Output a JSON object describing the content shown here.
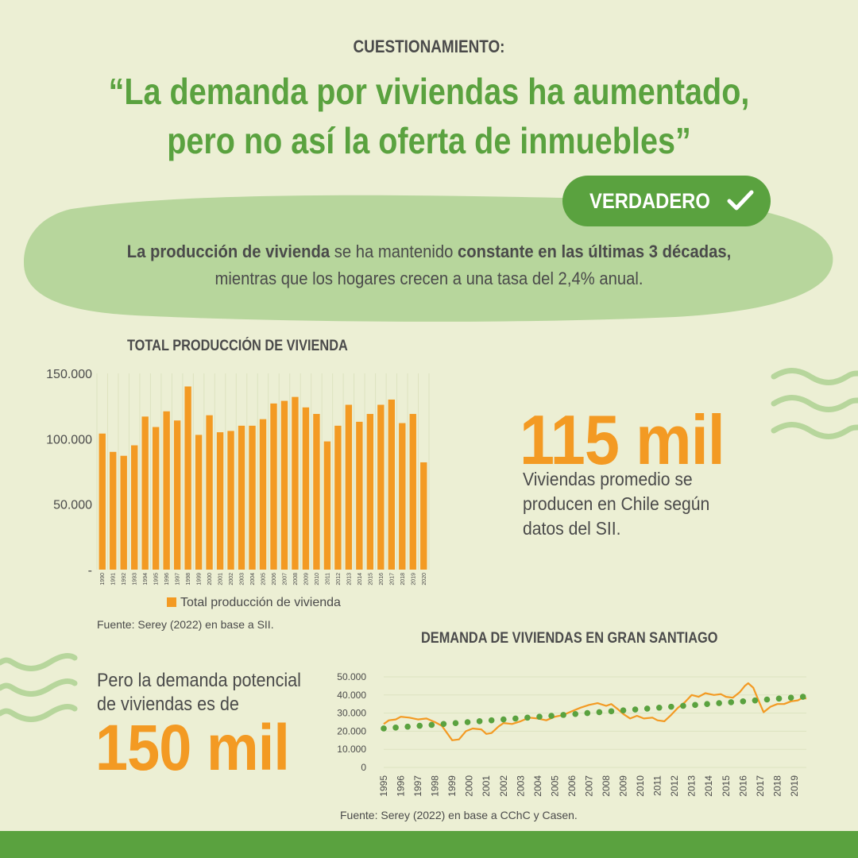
{
  "header": {
    "kicker": "CUESTIONAMIENTO:",
    "headline_line1": "“La demanda por viviendas ha aumentado,",
    "headline_line2": "pero no así la oferta de inmuebles”"
  },
  "verdict": {
    "label": "VERDADERO",
    "icon": "checkmark-icon"
  },
  "summary": {
    "line1_bold_a": "La producción de vivienda",
    "line1_mid": " se ha mantenido ",
    "line1_bold_b": "constante en las últimas 3 décadas,",
    "line2": "mientras que los hogares crecen a una tasa del 2,4% anual."
  },
  "stat_supply": {
    "value": "115 mil",
    "desc_line1": "Viviendas promedio se",
    "desc_line2": "producen en Chile según",
    "desc_line3": "datos del SII."
  },
  "stat_demand": {
    "text_line1": "Pero la demanda potencial",
    "text_line2": "de viviendas es de",
    "value": "150 mil"
  },
  "colors": {
    "green": "#5aa23f",
    "light_green": "#b7d69c",
    "orange": "#f39a23",
    "background": "#ecefd4",
    "text": "#4a4a4a"
  },
  "chart_data": [
    {
      "type": "bar",
      "title": "TOTAL PRODUCCIÓN DE VIVIENDA",
      "categories": [
        "1990",
        "1991",
        "1992",
        "1993",
        "1994",
        "1995",
        "1996",
        "1997",
        "1998",
        "1999",
        "2000",
        "2001",
        "2002",
        "2003",
        "2004",
        "2005",
        "2006",
        "2007",
        "2008",
        "2009",
        "2010",
        "2011",
        "2012",
        "2013",
        "2014",
        "2015",
        "2016",
        "2017",
        "2018",
        "2019",
        "2020"
      ],
      "series": [
        {
          "name": "Total producción de vivienda",
          "values": [
            104000,
            90000,
            87000,
            95000,
            117000,
            109000,
            121000,
            114000,
            140000,
            103000,
            118000,
            105000,
            106000,
            110000,
            110000,
            115000,
            127000,
            129000,
            132000,
            124000,
            119000,
            98000,
            110000,
            126000,
            113000,
            119000,
            126000,
            130000,
            112000,
            119000,
            82000
          ]
        }
      ],
      "yticks": [
        "-",
        "50.000",
        "100.000",
        "150.000"
      ],
      "ylim": [
        0,
        150000
      ],
      "legend": "bottom",
      "source": "Fuente: Serey (2022) en base a SII."
    },
    {
      "type": "line",
      "title": "DEMANDA DE VIVIENDAS EN GRAN SANTIAGO",
      "x_labels": [
        "1995",
        "1996",
        "1997",
        "1998",
        "1999",
        "2000",
        "2001",
        "2002",
        "2003",
        "2004",
        "2005",
        "2006",
        "2007",
        "2008",
        "2009",
        "2010",
        "2011",
        "2012",
        "2013",
        "2014",
        "2015",
        "2016",
        "2017",
        "2018",
        "2019"
      ],
      "yticks": [
        "0",
        "10.000",
        "20.000",
        "30.000",
        "40.000",
        "50.000"
      ],
      "ylim": [
        0,
        50000
      ],
      "xlim": [
        1995,
        2019.7
      ],
      "series": [
        {
          "style": "line",
          "color": "#f39a23",
          "points": [
            [
              1995,
              24000
            ],
            [
              1995.3,
              26000
            ],
            [
              1995.7,
              26500
            ],
            [
              1996,
              28000
            ],
            [
              1996.5,
              27500
            ],
            [
              1997,
              26500
            ],
            [
              1997.5,
              27000
            ],
            [
              1998,
              25000
            ],
            [
              1998.4,
              23000
            ],
            [
              1998.7,
              19000
            ],
            [
              1999,
              15000
            ],
            [
              1999.4,
              15500
            ],
            [
              1999.8,
              20000
            ],
            [
              2000.2,
              21500
            ],
            [
              2000.7,
              21000
            ],
            [
              2001,
              18500
            ],
            [
              2001.3,
              19000
            ],
            [
              2001.7,
              22500
            ],
            [
              2002,
              24500
            ],
            [
              2002.5,
              24000
            ],
            [
              2003,
              25500
            ],
            [
              2003.5,
              27500
            ],
            [
              2004,
              27000
            ],
            [
              2004.5,
              26000
            ],
            [
              2005,
              28000
            ],
            [
              2005.5,
              29000
            ],
            [
              2006,
              31000
            ],
            [
              2006.5,
              33000
            ],
            [
              2007,
              34500
            ],
            [
              2007.5,
              35500
            ],
            [
              2008,
              34000
            ],
            [
              2008.3,
              35000
            ],
            [
              2008.7,
              32000
            ],
            [
              2009,
              29500
            ],
            [
              2009.4,
              27000
            ],
            [
              2009.8,
              28500
            ],
            [
              2010.2,
              27000
            ],
            [
              2010.7,
              27500
            ],
            [
              2011,
              26000
            ],
            [
              2011.4,
              25500
            ],
            [
              2011.8,
              29000
            ],
            [
              2012.2,
              33000
            ],
            [
              2012.6,
              36000
            ],
            [
              2013,
              40000
            ],
            [
              2013.4,
              39000
            ],
            [
              2013.8,
              41000
            ],
            [
              2014.3,
              40000
            ],
            [
              2014.7,
              40500
            ],
            [
              2015,
              39000
            ],
            [
              2015.4,
              38500
            ],
            [
              2015.8,
              41500
            ],
            [
              2016.1,
              45000
            ],
            [
              2016.3,
              46500
            ],
            [
              2016.6,
              44000
            ],
            [
              2016.9,
              37000
            ],
            [
              2017.2,
              30500
            ],
            [
              2017.6,
              33500
            ],
            [
              2018,
              35000
            ],
            [
              2018.4,
              35000
            ],
            [
              2018.8,
              36500
            ],
            [
              2019.2,
              37000
            ],
            [
              2019.5,
              38500
            ],
            [
              2019.7,
              38000
            ]
          ]
        },
        {
          "style": "dotted",
          "color": "#5aa23f",
          "points": [
            [
              1995,
              21500
            ],
            [
              1995.7,
              22000
            ],
            [
              1996.4,
              22500
            ],
            [
              1997.1,
              23000
            ],
            [
              1997.8,
              23500
            ],
            [
              1998.5,
              24000
            ],
            [
              1999.2,
              24500
            ],
            [
              1999.9,
              25000
            ],
            [
              2000.6,
              25500
            ],
            [
              2001.3,
              26000
            ],
            [
              2002,
              26500
            ],
            [
              2002.7,
              27000
            ],
            [
              2003.4,
              27500
            ],
            [
              2004.1,
              28000
            ],
            [
              2004.8,
              28500
            ],
            [
              2005.5,
              29000
            ],
            [
              2006.2,
              29500
            ],
            [
              2006.9,
              30000
            ],
            [
              2007.6,
              30500
            ],
            [
              2008.3,
              31000
            ],
            [
              2009,
              31500
            ],
            [
              2009.7,
              32000
            ],
            [
              2010.4,
              32500
            ],
            [
              2011.1,
              33000
            ],
            [
              2011.8,
              33500
            ],
            [
              2012.5,
              34000
            ],
            [
              2013.2,
              34500
            ],
            [
              2013.9,
              35000
            ],
            [
              2014.6,
              35500
            ],
            [
              2015.3,
              36000
            ],
            [
              2016,
              36500
            ],
            [
              2016.7,
              37000
            ],
            [
              2017.4,
              37500
            ],
            [
              2018.1,
              38000
            ],
            [
              2018.8,
              38500
            ],
            [
              2019.5,
              39000
            ]
          ]
        }
      ],
      "source": "Fuente: Serey (2022) en base a CChC y Casen."
    }
  ]
}
